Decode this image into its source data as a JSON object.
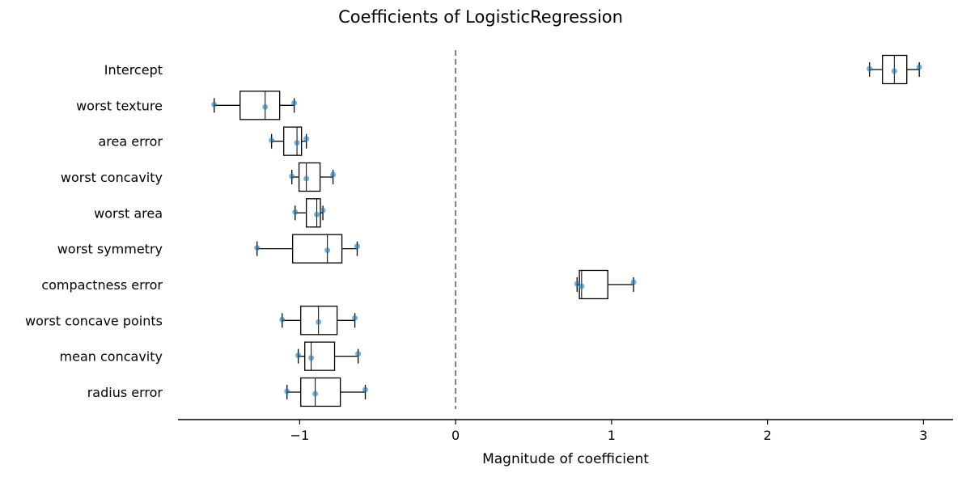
{
  "chart_data": {
    "type": "boxplot-horizontal",
    "title": "Coefficients of LogisticRegression",
    "xlabel": "Magnitude of coefficient",
    "ylabel": "",
    "xlim": [
      -1.78,
      3.19
    ],
    "xticks": [
      -1,
      0,
      1,
      2,
      3
    ],
    "xtick_labels": [
      "−1",
      "0",
      "1",
      "2",
      "3"
    ],
    "reference_line": {
      "x": 0,
      "style": "dashed",
      "color": "#808080"
    },
    "grid": false,
    "box_color": "#000000",
    "point_color": "#1f77b4",
    "categories": [
      "Intercept",
      "worst texture",
      "area error",
      "worst concavity",
      "worst area",
      "worst symmetry",
      "compactness error",
      "worst concave points",
      "mean concavity",
      "radius error"
    ],
    "boxes": [
      {
        "min": 2.654,
        "q1": 2.737,
        "median": 2.813,
        "q3": 2.893,
        "max": 2.973,
        "points": [
          2.654,
          2.813,
          2.973
        ]
      },
      {
        "min": -1.548,
        "q1": -1.382,
        "median": -1.221,
        "q3": -1.128,
        "max": -1.035,
        "points": [
          -1.548,
          -1.221,
          -1.035
        ]
      },
      {
        "min": -1.18,
        "q1": -1.102,
        "median": -1.017,
        "q3": -0.988,
        "max": -0.957,
        "points": [
          -1.18,
          -1.017,
          -0.957
        ]
      },
      {
        "min": -1.05,
        "q1": -1.004,
        "median": -0.957,
        "q3": -0.869,
        "max": -0.786,
        "points": [
          -1.05,
          -0.957,
          -0.786
        ]
      },
      {
        "min": -1.029,
        "q1": -0.957,
        "median": -0.89,
        "q3": -0.867,
        "max": -0.851,
        "points": [
          -1.029,
          -0.89,
          -0.851
        ]
      },
      {
        "min": -1.273,
        "q1": -1.045,
        "median": -0.822,
        "q3": -0.729,
        "max": -0.631,
        "points": [
          -1.273,
          -0.822,
          -0.631
        ]
      },
      {
        "min": 0.779,
        "q1": 0.794,
        "median": 0.808,
        "q3": 0.976,
        "max": 1.141,
        "points": [
          0.779,
          0.808,
          1.141
        ]
      },
      {
        "min": -1.112,
        "q1": -0.993,
        "median": -0.879,
        "q3": -0.76,
        "max": -0.646,
        "points": [
          -1.112,
          -0.879,
          -0.646
        ]
      },
      {
        "min": -1.009,
        "q1": -0.967,
        "median": -0.926,
        "q3": -0.776,
        "max": -0.625,
        "points": [
          -1.009,
          -0.926,
          -0.625
        ]
      },
      {
        "min": -1.081,
        "q1": -0.993,
        "median": -0.9,
        "q3": -0.739,
        "max": -0.579,
        "points": [
          -1.081,
          -0.9,
          -0.579
        ]
      }
    ]
  }
}
